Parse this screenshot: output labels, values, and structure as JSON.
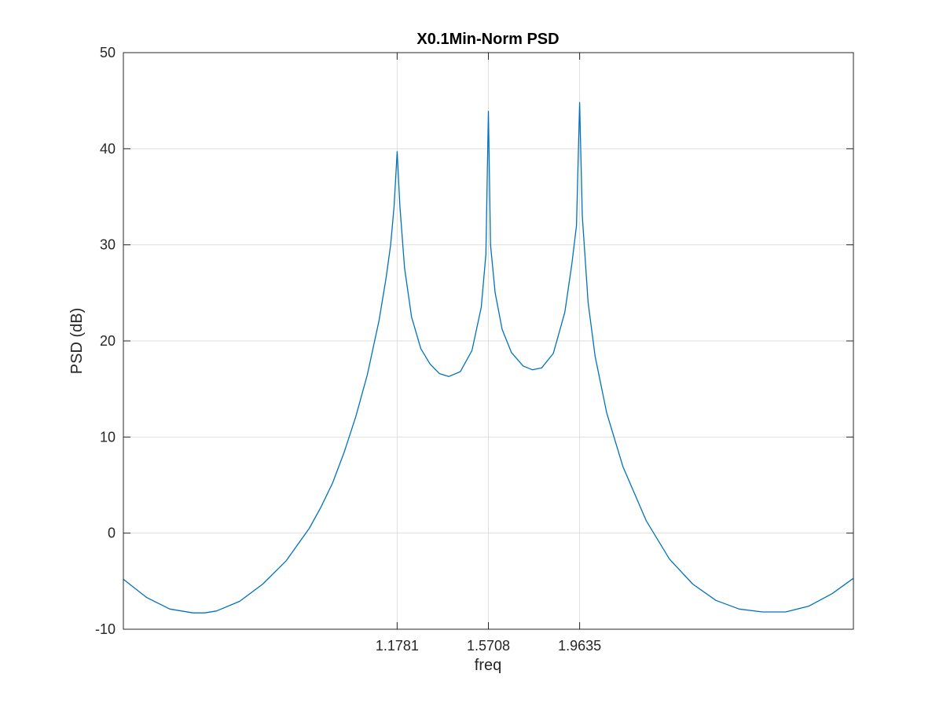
{
  "chart_data": {
    "type": "line",
    "title": "X0.1Min-Norm PSD",
    "xlabel": "freq",
    "ylabel": "PSD (dB)",
    "xlim": [
      0,
      3.1416
    ],
    "ylim": [
      -10,
      50
    ],
    "x_ticks": [
      1.1781,
      1.5708,
      1.9635
    ],
    "x_tick_labels": [
      "1.1781",
      "1.5708",
      "1.9635"
    ],
    "y_ticks": [
      -10,
      0,
      10,
      20,
      30,
      40,
      50
    ],
    "y_tick_labels": [
      "-10",
      "0",
      "10",
      "20",
      "30",
      "40",
      "50"
    ],
    "grid": true,
    "legend": "none",
    "line_color": "#0072bd",
    "series": [
      {
        "x": [
          0.0,
          0.1,
          0.2,
          0.3,
          0.35,
          0.4,
          0.5,
          0.6,
          0.7,
          0.8,
          0.85,
          0.9,
          0.95,
          1.0,
          1.05,
          1.1,
          1.13,
          1.15,
          1.165,
          1.1781,
          1.19,
          1.21,
          1.24,
          1.28,
          1.32,
          1.36,
          1.4,
          1.45,
          1.5,
          1.54,
          1.56,
          1.5708,
          1.58,
          1.6,
          1.63,
          1.67,
          1.72,
          1.76,
          1.8,
          1.85,
          1.9,
          1.93,
          1.95,
          1.9635,
          1.975,
          2.0,
          2.03,
          2.08,
          2.15,
          2.25,
          2.35,
          2.45,
          2.55,
          2.65,
          2.75,
          2.85,
          2.95,
          3.05,
          3.1416
        ],
        "y": [
          -4.8,
          -6.7,
          -7.9,
          -8.3,
          -8.3,
          -8.1,
          -7.1,
          -5.3,
          -2.9,
          0.5,
          2.7,
          5.2,
          8.4,
          12.1,
          16.5,
          22.1,
          26.5,
          30.0,
          34.0,
          39.7,
          34.0,
          27.6,
          22.5,
          19.2,
          17.6,
          16.6,
          16.3,
          16.8,
          19.0,
          23.5,
          29.0,
          43.9,
          30.0,
          25.0,
          21.2,
          18.8,
          17.4,
          17.0,
          17.2,
          18.7,
          23.0,
          28.0,
          32.0,
          44.8,
          33.0,
          24.0,
          18.4,
          12.5,
          6.9,
          1.3,
          -2.7,
          -5.3,
          -7.0,
          -7.9,
          -8.2,
          -8.2,
          -7.6,
          -6.3,
          -4.7
        ]
      }
    ]
  }
}
